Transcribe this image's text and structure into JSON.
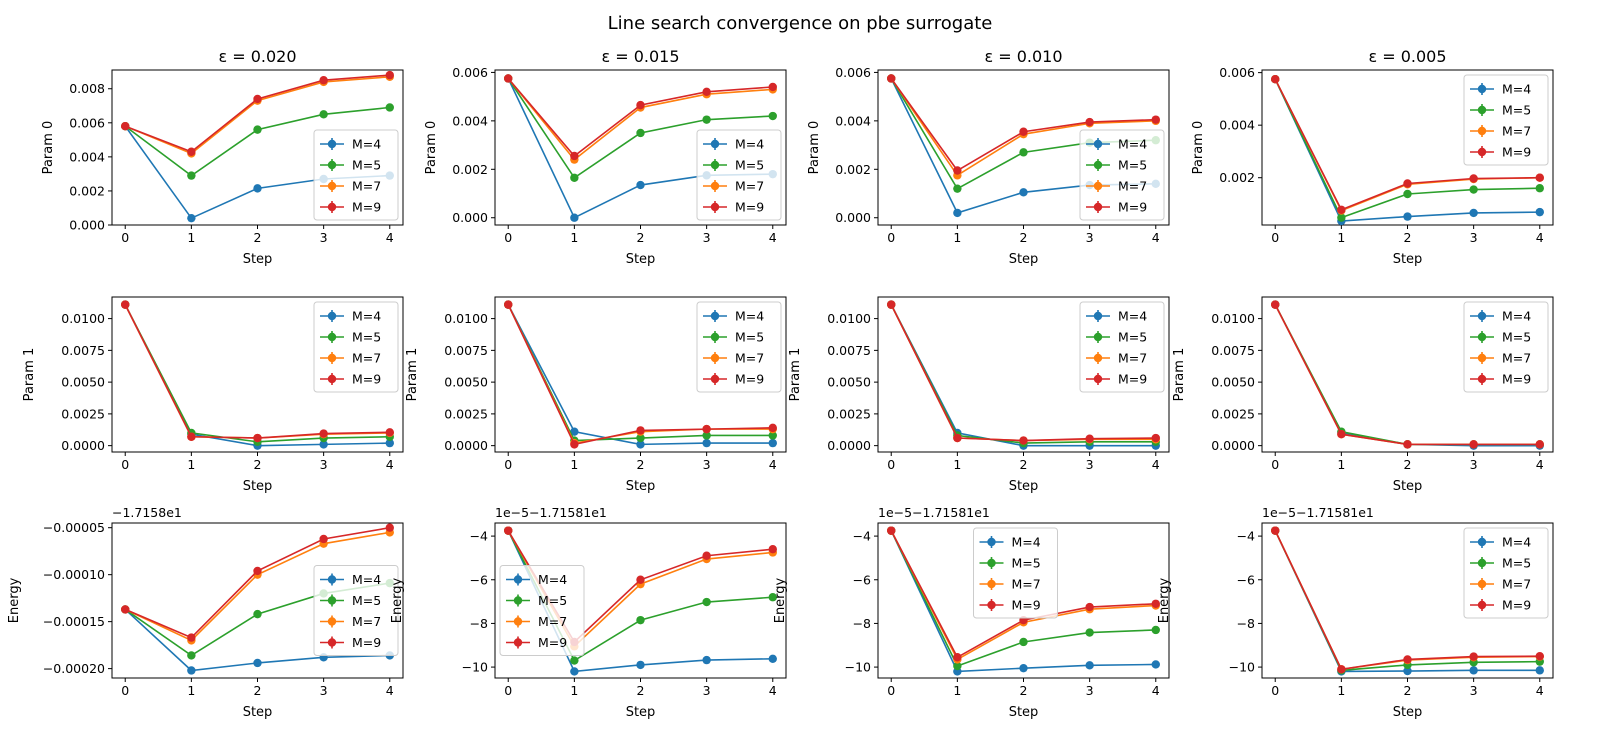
{
  "figure": {
    "title": "Line search convergence on pbe surrogate"
  },
  "colors": {
    "M=4": "#1f77b4",
    "M=5": "#2ca02c",
    "M=7": "#ff7f0e",
    "M=9": "#d62728"
  },
  "chart_data": [
    {
      "type": "line",
      "title": "ε = 0.020",
      "xlabel": "Step",
      "ylabel": "Param 0",
      "x": [
        0,
        1,
        2,
        3,
        4
      ],
      "xlim": [
        -0.2,
        4.2
      ],
      "ylim": [
        0,
        0.0091
      ],
      "yticks": [
        0,
        0.002,
        0.004,
        0.006,
        0.008
      ],
      "ytick_labels": [
        "0.000",
        "0.002",
        "0.004",
        "0.006",
        "0.008"
      ],
      "offset_text": "",
      "legend": "lower-right",
      "series": [
        {
          "name": "M=4",
          "values": [
            0.0058,
            0.0004,
            0.00215,
            0.0027,
            0.0029
          ]
        },
        {
          "name": "M=5",
          "values": [
            0.0058,
            0.0029,
            0.0056,
            0.0065,
            0.0069
          ]
        },
        {
          "name": "M=7",
          "values": [
            0.0058,
            0.0042,
            0.0073,
            0.0084,
            0.0087
          ]
        },
        {
          "name": "M=9",
          "values": [
            0.0058,
            0.0043,
            0.0074,
            0.0085,
            0.0088
          ]
        }
      ]
    },
    {
      "type": "line",
      "title": "ε = 0.015",
      "xlabel": "Step",
      "ylabel": "Param 0",
      "x": [
        0,
        1,
        2,
        3,
        4
      ],
      "xlim": [
        -0.2,
        4.2
      ],
      "ylim": [
        -0.0003,
        0.0061
      ],
      "yticks": [
        0,
        0.002,
        0.004,
        0.006
      ],
      "ytick_labels": [
        "0.000",
        "0.002",
        "0.004",
        "0.006"
      ],
      "offset_text": "",
      "legend": "lower-right",
      "series": [
        {
          "name": "M=4",
          "values": [
            0.00575,
            0.0,
            0.00135,
            0.00175,
            0.0018
          ]
        },
        {
          "name": "M=5",
          "values": [
            0.00575,
            0.00165,
            0.0035,
            0.00405,
            0.0042
          ]
        },
        {
          "name": "M=7",
          "values": [
            0.00575,
            0.0024,
            0.00455,
            0.0051,
            0.0053
          ]
        },
        {
          "name": "M=9",
          "values": [
            0.00575,
            0.00255,
            0.00465,
            0.0052,
            0.0054
          ]
        }
      ]
    },
    {
      "type": "line",
      "title": "ε = 0.010",
      "xlabel": "Step",
      "ylabel": "Param 0",
      "x": [
        0,
        1,
        2,
        3,
        4
      ],
      "xlim": [
        -0.2,
        4.2
      ],
      "ylim": [
        -0.0003,
        0.0061
      ],
      "yticks": [
        0,
        0.002,
        0.004,
        0.006
      ],
      "ytick_labels": [
        "0.000",
        "0.002",
        "0.004",
        "0.006"
      ],
      "offset_text": "",
      "legend": "lower-right",
      "series": [
        {
          "name": "M=4",
          "values": [
            0.00575,
            0.0002,
            0.00105,
            0.00135,
            0.0014
          ]
        },
        {
          "name": "M=5",
          "values": [
            0.00575,
            0.0012,
            0.0027,
            0.0031,
            0.0032
          ]
        },
        {
          "name": "M=7",
          "values": [
            0.00575,
            0.00175,
            0.00345,
            0.0039,
            0.004
          ]
        },
        {
          "name": "M=9",
          "values": [
            0.00575,
            0.00195,
            0.00355,
            0.00395,
            0.00405
          ]
        }
      ]
    },
    {
      "type": "line",
      "title": "ε = 0.005",
      "xlabel": "Step",
      "ylabel": "Param 0",
      "x": [
        0,
        1,
        2,
        3,
        4
      ],
      "xlim": [
        -0.2,
        4.2
      ],
      "ylim": [
        0.0002,
        0.0061
      ],
      "yticks": [
        0.002,
        0.004,
        0.006
      ],
      "ytick_labels": [
        "0.002",
        "0.004",
        "0.006"
      ],
      "offset_text": "",
      "legend": "upper-right",
      "series": [
        {
          "name": "M=4",
          "values": [
            0.00575,
            0.00035,
            0.00052,
            0.00066,
            0.00069
          ]
        },
        {
          "name": "M=5",
          "values": [
            0.00575,
            0.00048,
            0.00138,
            0.00155,
            0.0016
          ]
        },
        {
          "name": "M=7",
          "values": [
            0.00575,
            0.00075,
            0.00175,
            0.00195,
            0.002
          ]
        },
        {
          "name": "M=9",
          "values": [
            0.00575,
            0.00078,
            0.00178,
            0.00197,
            0.002
          ]
        }
      ]
    },
    {
      "type": "line",
      "title": "",
      "xlabel": "Step",
      "ylabel": "Param 1",
      "x": [
        0,
        1,
        2,
        3,
        4
      ],
      "xlim": [
        -0.2,
        4.2
      ],
      "ylim": [
        -0.0005,
        0.0117
      ],
      "yticks": [
        0,
        0.0025,
        0.005,
        0.0075,
        0.01
      ],
      "ytick_labels": [
        "0.0000",
        "0.0025",
        "0.0050",
        "0.0075",
        "0.0100"
      ],
      "offset_text": "",
      "legend": "upper-right",
      "series": [
        {
          "name": "M=4",
          "values": [
            0.0111,
            0.0009,
            0.0,
            0.0001,
            0.0002
          ]
        },
        {
          "name": "M=5",
          "values": [
            0.0111,
            0.001,
            0.0003,
            0.0006,
            0.0007
          ]
        },
        {
          "name": "M=7",
          "values": [
            0.0111,
            0.0007,
            0.0006,
            0.0009,
            0.001
          ]
        },
        {
          "name": "M=9",
          "values": [
            0.0111,
            0.0007,
            0.0006,
            0.00095,
            0.00105
          ]
        }
      ]
    },
    {
      "type": "line",
      "title": "",
      "xlabel": "Step",
      "ylabel": "Param 1",
      "x": [
        0,
        1,
        2,
        3,
        4
      ],
      "xlim": [
        -0.2,
        4.2
      ],
      "ylim": [
        -0.0005,
        0.0117
      ],
      "yticks": [
        0,
        0.0025,
        0.005,
        0.0075,
        0.01
      ],
      "ytick_labels": [
        "0.0000",
        "0.0025",
        "0.0050",
        "0.0075",
        "0.0100"
      ],
      "offset_text": "",
      "legend": "upper-right",
      "series": [
        {
          "name": "M=4",
          "values": [
            0.0111,
            0.0011,
            0.0001,
            0.0002,
            0.0002
          ]
        },
        {
          "name": "M=5",
          "values": [
            0.0111,
            0.0004,
            0.0006,
            0.0008,
            0.0008
          ]
        },
        {
          "name": "M=7",
          "values": [
            0.0111,
            0.0002,
            0.0011,
            0.0013,
            0.0013
          ]
        },
        {
          "name": "M=9",
          "values": [
            0.0111,
            0.0001,
            0.0012,
            0.0013,
            0.0014
          ]
        }
      ]
    },
    {
      "type": "line",
      "title": "",
      "xlabel": "Step",
      "ylabel": "Param 1",
      "x": [
        0,
        1,
        2,
        3,
        4
      ],
      "xlim": [
        -0.2,
        4.2
      ],
      "ylim": [
        -0.0005,
        0.0117
      ],
      "yticks": [
        0,
        0.0025,
        0.005,
        0.0075,
        0.01
      ],
      "ytick_labels": [
        "0.0000",
        "0.0025",
        "0.0050",
        "0.0075",
        "0.0100"
      ],
      "offset_text": "",
      "legend": "upper-right",
      "series": [
        {
          "name": "M=4",
          "values": [
            0.0111,
            0.001,
            0.0,
            0.0,
            0.0
          ]
        },
        {
          "name": "M=5",
          "values": [
            0.0111,
            0.0008,
            0.0002,
            0.0003,
            0.0003
          ]
        },
        {
          "name": "M=7",
          "values": [
            0.0111,
            0.0006,
            0.0004,
            0.0005,
            0.0005
          ]
        },
        {
          "name": "M=9",
          "values": [
            0.0111,
            0.0006,
            0.0004,
            0.00055,
            0.0006
          ]
        }
      ]
    },
    {
      "type": "line",
      "title": "",
      "xlabel": "Step",
      "ylabel": "Param 1",
      "x": [
        0,
        1,
        2,
        3,
        4
      ],
      "xlim": [
        -0.2,
        4.2
      ],
      "ylim": [
        -0.0005,
        0.0117
      ],
      "yticks": [
        0,
        0.0025,
        0.005,
        0.0075,
        0.01
      ],
      "ytick_labels": [
        "0.0000",
        "0.0025",
        "0.0050",
        "0.0075",
        "0.0100"
      ],
      "offset_text": "",
      "legend": "upper-right",
      "series": [
        {
          "name": "M=4",
          "values": [
            0.0111,
            0.001,
            0.0001,
            0.0,
            0.0
          ]
        },
        {
          "name": "M=5",
          "values": [
            0.0111,
            0.0011,
            0.0001,
            0.0001,
            0.0001
          ]
        },
        {
          "name": "M=7",
          "values": [
            0.0111,
            0.0009,
            0.0001,
            0.0001,
            0.0001
          ]
        },
        {
          "name": "M=9",
          "values": [
            0.0111,
            0.0009,
            0.0001,
            0.0001,
            0.0001
          ]
        }
      ]
    },
    {
      "type": "line",
      "title": "",
      "xlabel": "Step",
      "ylabel": "Energy",
      "x": [
        0,
        1,
        2,
        3,
        4
      ],
      "xlim": [
        -0.2,
        4.2
      ],
      "ylim": [
        -0.00021,
        -4.5e-05
      ],
      "yticks": [
        -0.0002,
        -0.00015,
        -0.0001,
        -5e-05
      ],
      "ytick_labels": [
        "−0.00020",
        "−0.00015",
        "−0.00010",
        "−0.00005"
      ],
      "offset_text": "−1.7158e1",
      "legend": "center-right",
      "series": [
        {
          "name": "M=4",
          "values": [
            -0.000137,
            -0.000202,
            -0.000194,
            -0.000188,
            -0.000186
          ]
        },
        {
          "name": "M=5",
          "values": [
            -0.000137,
            -0.000186,
            -0.000142,
            -0.00012,
            -0.000109
          ]
        },
        {
          "name": "M=7",
          "values": [
            -0.000137,
            -0.00017,
            -0.0001,
            -6.7e-05,
            -5.5e-05
          ]
        },
        {
          "name": "M=9",
          "values": [
            -0.000137,
            -0.000167,
            -9.6e-05,
            -6.2e-05,
            -5e-05
          ]
        }
      ]
    },
    {
      "type": "line",
      "title": "",
      "xlabel": "Step",
      "ylabel": "Energy",
      "x": [
        0,
        1,
        2,
        3,
        4
      ],
      "xlim": [
        -0.2,
        4.2
      ],
      "ylim": [
        -10.5,
        -3.4
      ],
      "yticks": [
        -10,
        -8,
        -6,
        -4
      ],
      "ytick_labels": [
        "−10",
        "−8",
        "−6",
        "−4"
      ],
      "offset_text": "1e−5−1.71581e1",
      "legend": "center-left",
      "series": [
        {
          "name": "M=4",
          "values": [
            -3.75,
            -10.2,
            -9.9,
            -9.68,
            -9.62
          ]
        },
        {
          "name": "M=5",
          "values": [
            -3.75,
            -9.7,
            -7.85,
            -7.02,
            -6.8
          ]
        },
        {
          "name": "M=7",
          "values": [
            -3.75,
            -9.05,
            -6.2,
            -5.05,
            -4.75
          ]
        },
        {
          "name": "M=9",
          "values": [
            -3.75,
            -8.85,
            -6.0,
            -4.9,
            -4.6
          ]
        }
      ]
    },
    {
      "type": "line",
      "title": "",
      "xlabel": "Step",
      "ylabel": "Energy",
      "x": [
        0,
        1,
        2,
        3,
        4
      ],
      "xlim": [
        -0.2,
        4.2
      ],
      "ylim": [
        -10.5,
        -3.4
      ],
      "yticks": [
        -10,
        -8,
        -6,
        -4
      ],
      "ytick_labels": [
        "−10",
        "−8",
        "−6",
        "−4"
      ],
      "offset_text": "1e−5−1.71581e1",
      "legend": "upper-center",
      "series": [
        {
          "name": "M=4",
          "values": [
            -3.75,
            -10.2,
            -10.05,
            -9.92,
            -9.88
          ]
        },
        {
          "name": "M=5",
          "values": [
            -3.75,
            -9.95,
            -8.85,
            -8.42,
            -8.3
          ]
        },
        {
          "name": "M=7",
          "values": [
            -3.75,
            -9.65,
            -7.95,
            -7.35,
            -7.18
          ]
        },
        {
          "name": "M=9",
          "values": [
            -3.75,
            -9.55,
            -7.85,
            -7.25,
            -7.1
          ]
        }
      ]
    },
    {
      "type": "line",
      "title": "",
      "xlabel": "Step",
      "ylabel": "Energy",
      "x": [
        0,
        1,
        2,
        3,
        4
      ],
      "xlim": [
        -0.2,
        4.2
      ],
      "ylim": [
        -10.5,
        -3.4
      ],
      "yticks": [
        -10,
        -8,
        -6,
        -4
      ],
      "ytick_labels": [
        "−10",
        "−8",
        "−6",
        "−4"
      ],
      "offset_text": "1e−5−1.71581e1",
      "legend": "upper-right",
      "series": [
        {
          "name": "M=4",
          "values": [
            -3.75,
            -10.2,
            -10.18,
            -10.15,
            -10.15
          ]
        },
        {
          "name": "M=5",
          "values": [
            -3.75,
            -10.15,
            -9.9,
            -9.78,
            -9.75
          ]
        },
        {
          "name": "M=7",
          "values": [
            -3.75,
            -10.1,
            -9.68,
            -9.55,
            -9.52
          ]
        },
        {
          "name": "M=9",
          "values": [
            -3.75,
            -10.1,
            -9.65,
            -9.52,
            -9.5
          ]
        }
      ]
    }
  ]
}
